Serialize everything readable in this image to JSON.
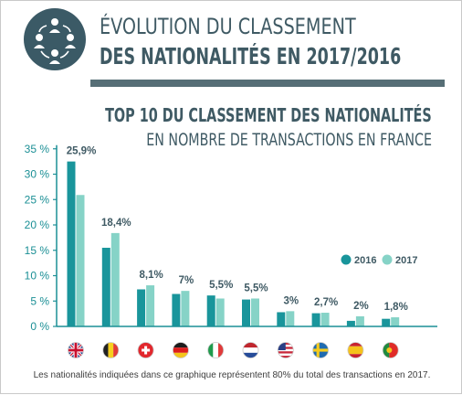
{
  "header": {
    "title_line1": "ÉVOLUTION DU CLASSEMENT",
    "title_line2": "DES NATIONALITÉS EN 2017/2016",
    "icon": "people-exchange-icon"
  },
  "footnote": "Les nationalités indiquées dans ce graphique représentent 80% du total des transactions en 2017.",
  "colors": {
    "series_2016": "#19959b",
    "series_2017": "#86d3c7",
    "axis": "#1b8f95",
    "text_dark": "#3f5a64",
    "header_icon_bg": "#3b5a66"
  },
  "chart_data": {
    "type": "bar",
    "title": "TOP 10 DU CLASSEMENT DES NATIONALITÉS",
    "subtitle": "EN NOMBRE DE TRANSACTIONS EN FRANCE",
    "categories": [
      "Royaume-Uni",
      "Belgique",
      "Suisse",
      "Allemagne",
      "Italie",
      "Pays-Bas",
      "États-Unis",
      "Suède",
      "Espagne",
      "Portugal"
    ],
    "category_icons": [
      "uk-flag-icon",
      "belgium-flag-icon",
      "switzerland-flag-icon",
      "germany-flag-icon",
      "italy-flag-icon",
      "netherlands-flag-icon",
      "usa-flag-icon",
      "sweden-flag-icon",
      "spain-flag-icon",
      "portugal-flag-icon"
    ],
    "series": [
      {
        "name": "2016",
        "values": [
          32.5,
          15.5,
          7.3,
          6.4,
          6.1,
          5.3,
          2.8,
          2.6,
          1.1,
          1.5
        ]
      },
      {
        "name": "2017",
        "values": [
          25.9,
          18.4,
          8.1,
          7.0,
          5.5,
          5.5,
          3.0,
          2.7,
          2.0,
          1.8
        ]
      }
    ],
    "data_labels": [
      "25,9%",
      "18,4%",
      "8,1%",
      "7%",
      "5,5%",
      "5,5%",
      "3%",
      "2,7%",
      "2%",
      "1,8%"
    ],
    "y_ticks": [
      0,
      5,
      10,
      15,
      20,
      25,
      30,
      35
    ],
    "y_tick_labels": [
      "0 %",
      "5 %",
      "10 %",
      "15 %",
      "20 %",
      "25 %",
      "30 %",
      "35 %"
    ],
    "ylim": [
      0,
      35
    ],
    "xlabel": "",
    "ylabel": "",
    "legend_position": "right",
    "grid": false
  }
}
